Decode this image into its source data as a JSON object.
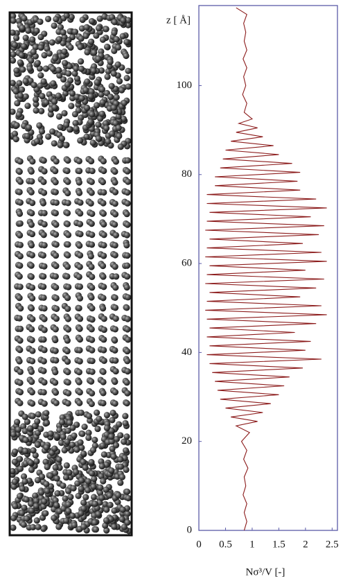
{
  "chart_data": {
    "type": "line",
    "ylabel": "z [ Å]",
    "xlabel": "Nσ³/V [-]",
    "xlim": [
      0,
      2.6
    ],
    "xticks": [
      0,
      0.5,
      1,
      1.5,
      2,
      2.5
    ],
    "ylim": [
      0,
      118
    ],
    "yticks": [
      0,
      20,
      40,
      60,
      80,
      100
    ],
    "color": "#8b1a1a",
    "frame_color": "#5a5aa8",
    "z": [
      0,
      2,
      4,
      6,
      8,
      10,
      12,
      14,
      16,
      18,
      20,
      22,
      23.5,
      24.5,
      25.5,
      26.5,
      27.5,
      28.5,
      29.5,
      30.5,
      31.5,
      32.5,
      33.5,
      34.5,
      35.5,
      36.5,
      37.5,
      38.5,
      39.5,
      40.5,
      41.5,
      42.5,
      43.5,
      44.5,
      45.5,
      46.5,
      47.5,
      48.5,
      49.5,
      50.5,
      51.5,
      52.5,
      53.5,
      54.5,
      55.5,
      56.5,
      57.5,
      58.5,
      59.5,
      60.5,
      61.5,
      62.5,
      63.5,
      64.5,
      65.5,
      66.5,
      67.5,
      68.5,
      69.5,
      70.5,
      71.5,
      72.5,
      73.5,
      74.5,
      75.5,
      76.5,
      77.5,
      78.5,
      79.5,
      80.5,
      81.5,
      82.5,
      83.5,
      84.5,
      85.5,
      86.5,
      87.5,
      88.5,
      89.5,
      90.5,
      91.5,
      92.5,
      94,
      96,
      98,
      100,
      102,
      104,
      106,
      108,
      110,
      112,
      114,
      116,
      117.5
    ],
    "values": [
      0.85,
      0.9,
      0.85,
      0.9,
      0.83,
      0.88,
      0.85,
      0.92,
      0.84,
      0.9,
      0.8,
      0.95,
      0.7,
      1.1,
      0.6,
      1.2,
      0.5,
      1.35,
      0.4,
      1.5,
      0.35,
      1.6,
      0.3,
      1.7,
      0.25,
      1.95,
      0.2,
      2.3,
      0.15,
      2.0,
      0.2,
      2.1,
      0.15,
      1.8,
      0.2,
      2.2,
      0.15,
      2.4,
      0.12,
      2.3,
      0.15,
      1.9,
      0.2,
      2.2,
      0.12,
      2.35,
      0.15,
      2.0,
      0.2,
      2.4,
      0.12,
      2.3,
      0.15,
      1.95,
      0.2,
      2.25,
      0.12,
      2.35,
      0.15,
      2.1,
      0.2,
      2.4,
      0.15,
      2.2,
      0.15,
      1.9,
      0.3,
      1.85,
      0.3,
      1.9,
      0.4,
      1.75,
      0.45,
      1.5,
      0.5,
      1.4,
      0.6,
      1.2,
      0.7,
      1.1,
      0.75,
      1.0,
      0.85,
      0.9,
      0.82,
      0.88,
      0.84,
      0.9,
      0.83,
      0.9,
      0.85,
      0.88,
      0.84,
      0.9,
      0.7
    ]
  }
}
